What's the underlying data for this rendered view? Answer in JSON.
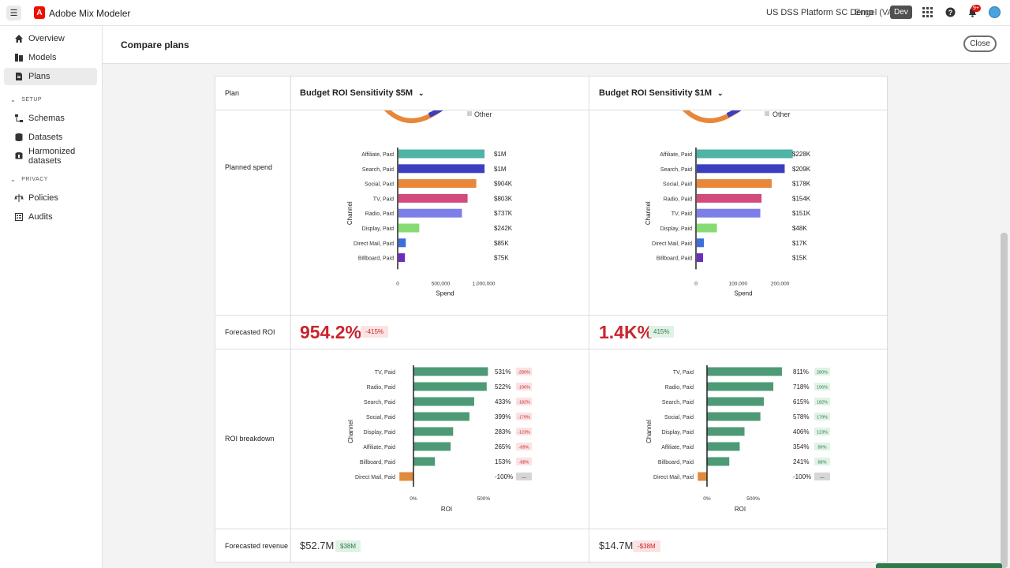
{
  "app": {
    "title": "Adobe Mix Modeler",
    "org": "US DSS Platform SC Demo",
    "user": "Engel (VA7)",
    "env": "Dev",
    "notifications": "9+",
    "logo_letter": "A"
  },
  "sidebar": {
    "items": [
      {
        "label": "Overview",
        "icon": "home-icon"
      },
      {
        "label": "Models",
        "icon": "models-icon"
      },
      {
        "label": "Plans",
        "icon": "plans-icon",
        "active": true
      }
    ],
    "setup_label": "SETUP",
    "setup_items": [
      {
        "label": "Schemas",
        "icon": "schema-icon"
      },
      {
        "label": "Datasets",
        "icon": "dataset-icon"
      },
      {
        "label": "Harmonized datasets",
        "icon": "harmonized-icon"
      }
    ],
    "privacy_label": "PRIVACY",
    "privacy_items": [
      {
        "label": "Policies",
        "icon": "policies-icon"
      },
      {
        "label": "Audits",
        "icon": "audits-icon"
      }
    ]
  },
  "page": {
    "title": "Compare plans",
    "close_label": "Close"
  },
  "table": {
    "plan_header": "Plan",
    "rows": {
      "planned_spend": "Planned spend",
      "forecasted_roi": "Forecasted ROI",
      "roi_breakdown": "ROI breakdown",
      "forecasted_revenue": "Forecasted revenue"
    },
    "other_label": "Other",
    "plans": [
      {
        "name": "Budget ROI Sensitivity $5M",
        "roi": "954.2%",
        "roi_delta": "-415%",
        "revenue": "$52.7M",
        "revenue_delta": "$38M"
      },
      {
        "name": "Budget ROI Sensitivity $1M",
        "roi": "1.4K%",
        "roi_delta": "415%",
        "revenue": "$14.7M",
        "revenue_delta": "-$38M"
      }
    ]
  },
  "colors": {
    "accent_red": "#c9252d",
    "roi_bar": "#4e9a76",
    "negative_bar": "#e08a3c"
  },
  "chart_data": [
    {
      "type": "bar",
      "orientation": "horizontal",
      "title": "",
      "xlabel": "Spend",
      "ylabel": "Channel",
      "categories": [
        "Affiliate, Paid",
        "Search, Paid",
        "Social, Paid",
        "TV, Paid",
        "Radio, Paid",
        "Display, Paid",
        "Direct Mail, Paid",
        "Billboard, Paid"
      ],
      "values": [
        1000000,
        1000000,
        904000,
        803000,
        737000,
        242000,
        85000,
        75000
      ],
      "value_labels": [
        "$1M",
        "$1M",
        "$904K",
        "$803K",
        "$737K",
        "$242K",
        "$85K",
        "$75K"
      ],
      "colors": [
        "#4fb3a6",
        "#3b3fbf",
        "#e8873a",
        "#d24b7d",
        "#7d7fe8",
        "#86dc74",
        "#3c6fd8",
        "#6a2fc0"
      ],
      "xticks": [
        0,
        500000,
        1000000
      ],
      "xtick_labels": [
        "0",
        "500,000",
        "1,000,000"
      ],
      "xlim": [
        0,
        1100000
      ]
    },
    {
      "type": "bar",
      "orientation": "horizontal",
      "title": "",
      "xlabel": "Spend",
      "ylabel": "Channel",
      "categories": [
        "Affiliate, Paid",
        "Search, Paid",
        "Social, Paid",
        "Radio, Paid",
        "TV, Paid",
        "Display, Paid",
        "Direct Mail, Paid",
        "Billboard, Paid"
      ],
      "values": [
        228000,
        209000,
        178000,
        154000,
        151000,
        48000,
        17000,
        15000
      ],
      "value_labels": [
        "$228K",
        "$209K",
        "$178K",
        "$154K",
        "$151K",
        "$48K",
        "$17K",
        "$15K"
      ],
      "colors": [
        "#4fb3a6",
        "#3b3fbf",
        "#e8873a",
        "#d24b7d",
        "#7d7fe8",
        "#86dc74",
        "#3c6fd8",
        "#6a2fc0"
      ],
      "xticks": [
        0,
        100000,
        200000
      ],
      "xtick_labels": [
        "0",
        "100,000",
        "200,000"
      ],
      "xlim": [
        0,
        225000
      ]
    },
    {
      "type": "bar",
      "orientation": "horizontal",
      "title": "",
      "xlabel": "ROI",
      "ylabel": "Channel",
      "categories": [
        "TV, Paid",
        "Radio, Paid",
        "Search, Paid",
        "Social, Paid",
        "Display, Paid",
        "Affiliate, Paid",
        "Billboard, Paid",
        "Direct Mail, Paid"
      ],
      "values": [
        531,
        522,
        433,
        399,
        283,
        265,
        153,
        -100
      ],
      "value_labels": [
        "531%",
        "522%",
        "433%",
        "399%",
        "283%",
        "265%",
        "153%",
        "-100%"
      ],
      "deltas": [
        "-280%",
        "-196%",
        "-182%",
        "-179%",
        "-123%",
        "-89%",
        "-88%",
        "—"
      ],
      "delta_tone": [
        "red",
        "red",
        "red",
        "red",
        "red",
        "red",
        "red",
        "neutral"
      ],
      "xticks": [
        0,
        500
      ],
      "xtick_labels": [
        "0%",
        "500%"
      ],
      "xlim": [
        -100,
        540
      ]
    },
    {
      "type": "bar",
      "orientation": "horizontal",
      "title": "",
      "xlabel": "ROI",
      "ylabel": "Channel",
      "categories": [
        "TV, Paid",
        "Radio, Paid",
        "Search, Paid",
        "Social, Paid",
        "Display, Paid",
        "Affiliate, Paid",
        "Billboard, Paid",
        "Direct Mail, Paid"
      ],
      "values": [
        811,
        718,
        615,
        578,
        406,
        354,
        241,
        -100
      ],
      "value_labels": [
        "811%",
        "718%",
        "615%",
        "578%",
        "406%",
        "354%",
        "241%",
        "-100%"
      ],
      "deltas": [
        "280%",
        "196%",
        "182%",
        "179%",
        "123%",
        "89%",
        "88%",
        "—"
      ],
      "delta_tone": [
        "green",
        "green",
        "green",
        "green",
        "green",
        "green",
        "green",
        "neutral"
      ],
      "xticks": [
        0,
        500
      ],
      "xtick_labels": [
        "0%",
        "500%"
      ],
      "xlim": [
        -100,
        820
      ]
    }
  ]
}
